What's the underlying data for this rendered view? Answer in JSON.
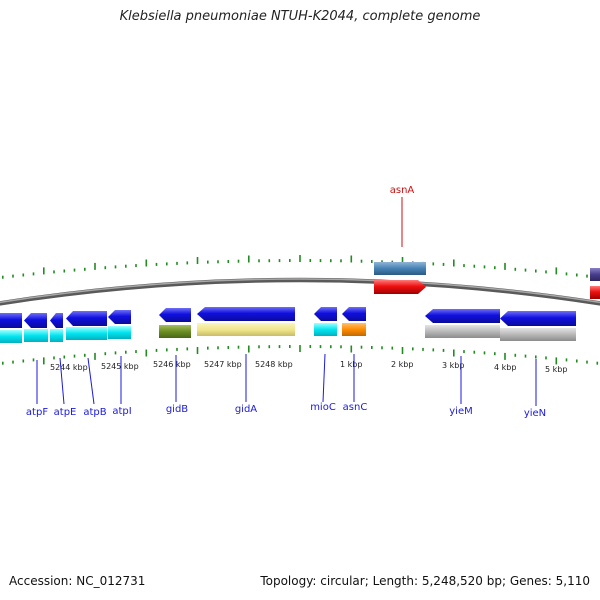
{
  "title": "Klebsiella pneumoniae NTUH-K2044, complete genome",
  "footer": {
    "accession_prefix": "Accession:",
    "accession": "NC_012731",
    "topology_prefix": "Topology:",
    "topology": "circular",
    "length_prefix": "Length:",
    "length": "5,248,520 bp",
    "genes_prefix": "Genes:",
    "genes": "5,110"
  },
  "colors": {
    "backbone": "#808080",
    "tick": "#228b22",
    "label_blue": "#1a1adc",
    "label_red": "#cc1111",
    "gene_blue": "#1010e0",
    "gene_red": "#ee1111",
    "cyan": "#00e5f0",
    "olive": "#6b8e23",
    "khaki": "#f0e68c",
    "orange": "#ff8c00",
    "grey": "#b8b8b8",
    "steel": "#4682b4",
    "slate": "#483d8b"
  },
  "scale_labels": [
    "5244 kbp",
    "5245 kbp",
    "5246 kbp",
    "5247 kbp",
    "5248 kbp",
    "1 kbp",
    "2 kbp",
    "3 kbp",
    "4 kbp",
    "5 kbp"
  ],
  "gene_labels": {
    "outer": [
      "asnA"
    ],
    "inner": [
      "atpF",
      "atpE",
      "atpB",
      "atpI",
      "gidB",
      "gidA",
      "mioC",
      "asnC",
      "yieM",
      "yieN"
    ]
  }
}
